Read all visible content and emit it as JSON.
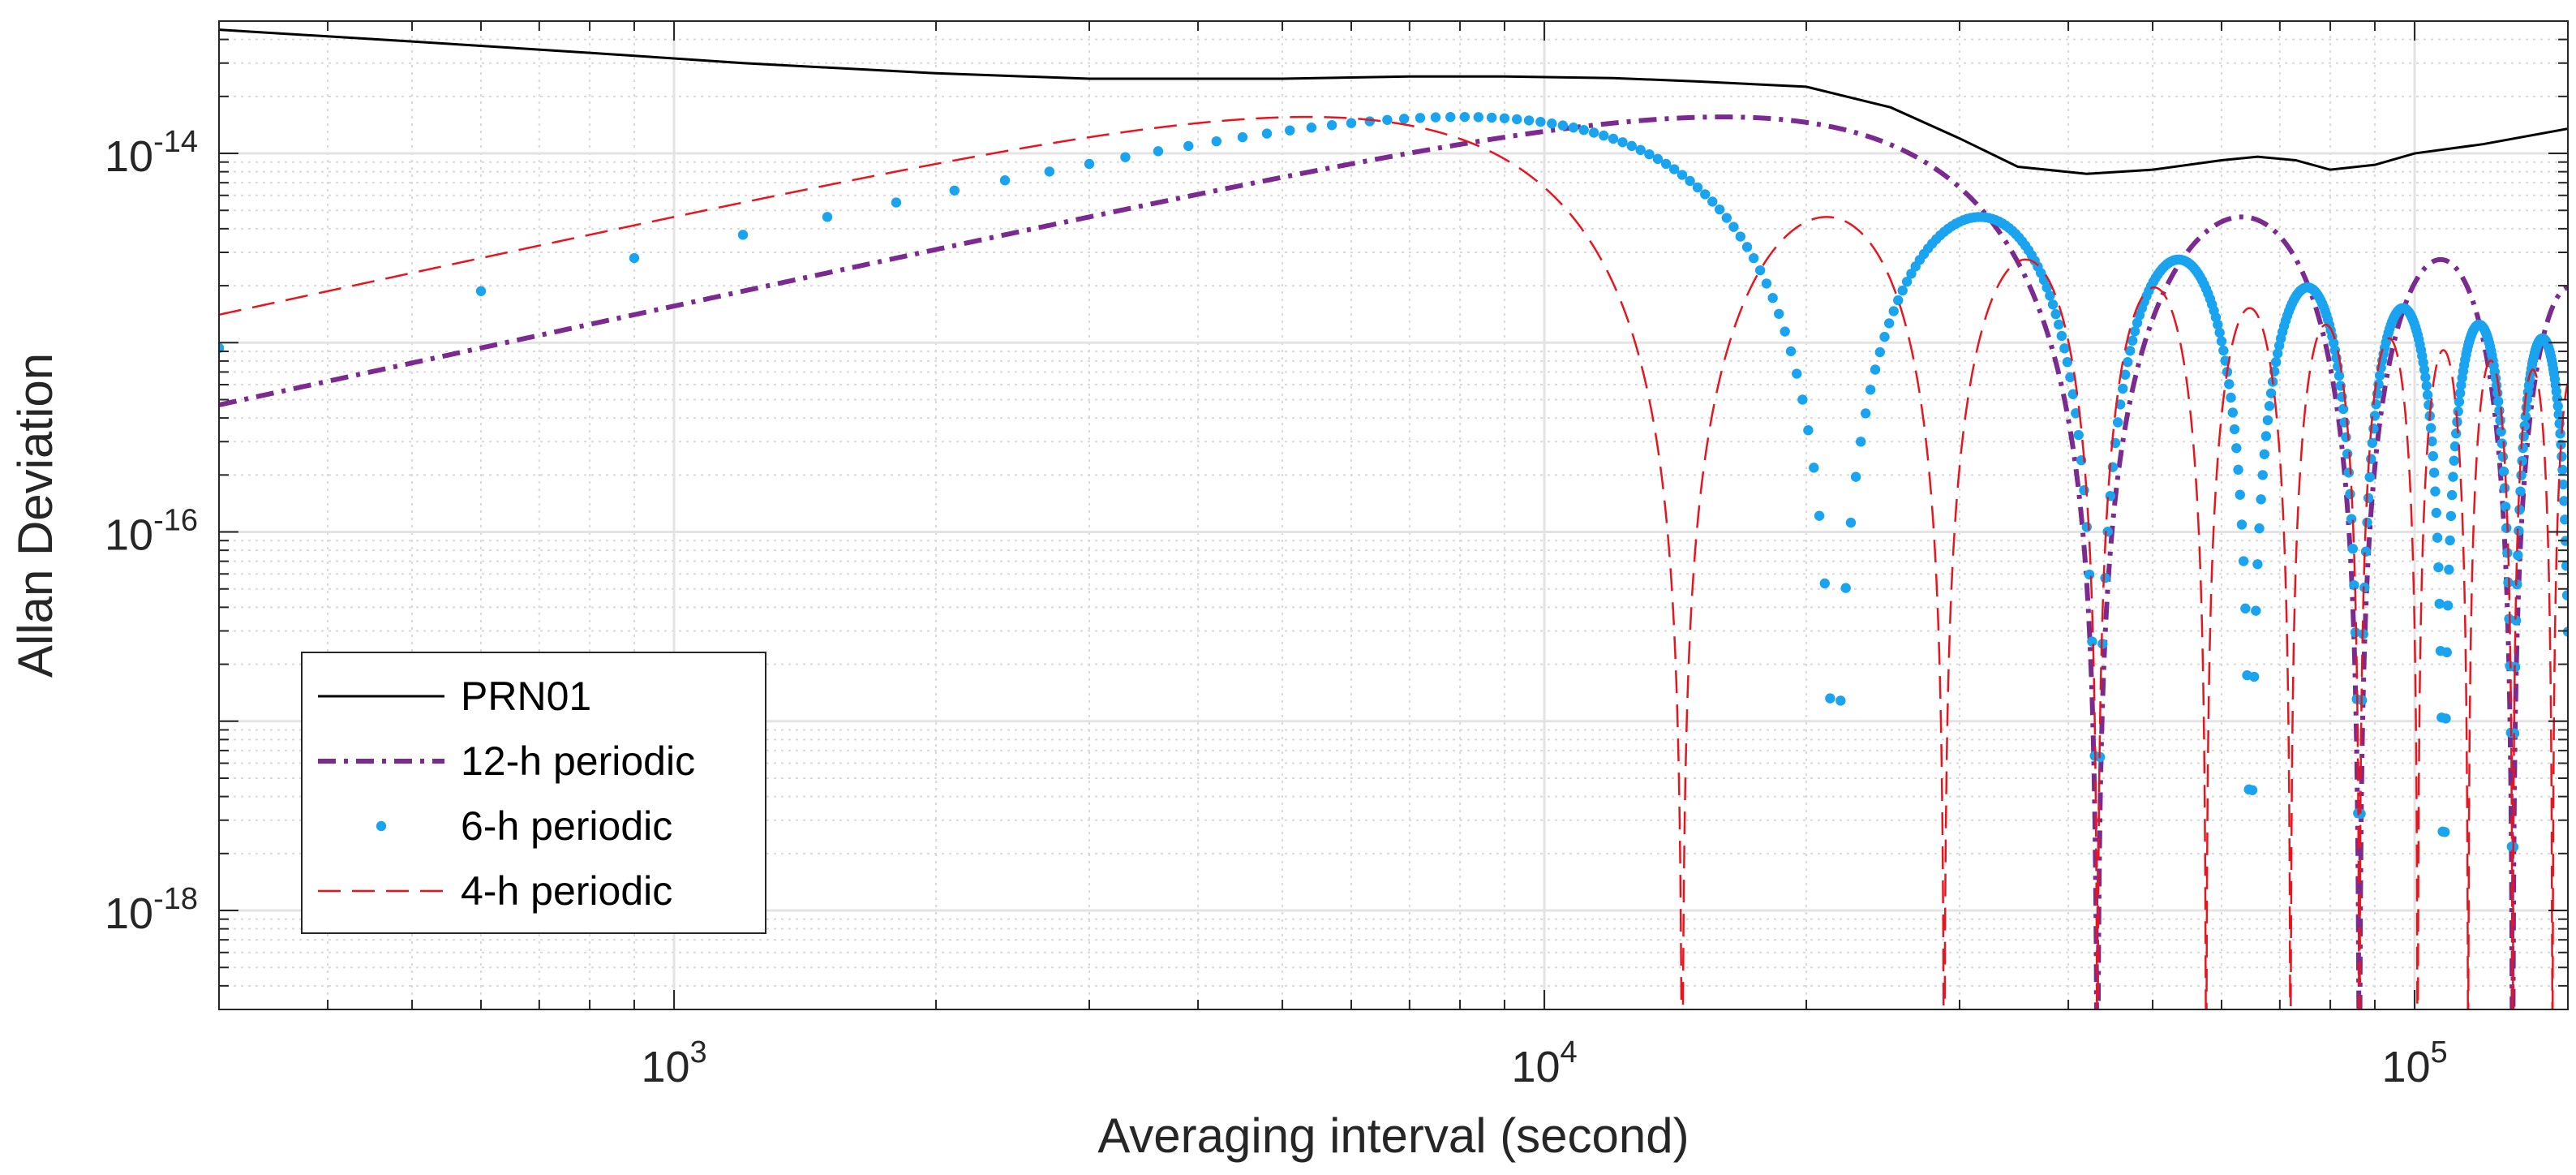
{
  "chart_data": {
    "type": "line",
    "scale": "log-log",
    "title": "",
    "xlabel": "Averaging interval (second)",
    "ylabel": "Allan Deviation",
    "xlim": [
      300,
      150000
    ],
    "ylim": [
      3e-19,
      5e-14
    ],
    "x_ticks": [
      {
        "value": 1000,
        "base": "10",
        "exp": "3"
      },
      {
        "value": 10000,
        "base": "10",
        "exp": "4"
      },
      {
        "value": 100000,
        "base": "10",
        "exp": "5"
      }
    ],
    "y_ticks": [
      {
        "value": 1e-18,
        "base": "10",
        "exp": "-18"
      },
      {
        "value": 1e-16,
        "base": "10",
        "exp": "-16"
      },
      {
        "value": 1e-14,
        "base": "10",
        "exp": "-14"
      }
    ],
    "grid": true,
    "legend_position": "lower-left",
    "series": [
      {
        "name": "PRN01",
        "style": "solid",
        "color": "#000000",
        "kind": "measured",
        "x": [
          300,
          500,
          800,
          1200,
          2000,
          3000,
          5000,
          7000,
          9000,
          12000,
          15000,
          20000,
          25000,
          30000,
          35000,
          42000,
          50000,
          60000,
          66000,
          73000,
          80000,
          90000,
          100000,
          120000,
          150000
        ],
        "y": [
          4.5e-14,
          3.9e-14,
          3.4e-14,
          3e-14,
          2.65e-14,
          2.48e-14,
          2.48e-14,
          2.55e-14,
          2.55e-14,
          2.5e-14,
          2.4e-14,
          2.25e-14,
          1.75e-14,
          1.2e-14,
          8.5e-15,
          7.8e-15,
          8.2e-15,
          9.2e-15,
          9.6e-15,
          9.2e-15,
          8.2e-15,
          8.7e-15,
          1e-14,
          1.12e-14,
          1.35e-14
        ]
      },
      {
        "name": "12-h periodic",
        "style": "dashdot",
        "color": "#7B2A8F",
        "period_hours": 12,
        "amplitude": 2.15e-14
      },
      {
        "name": "6-h periodic",
        "style": "dots",
        "color": "#1AA3EE",
        "period_hours": 6,
        "amplitude": 2.15e-14
      },
      {
        "name": "4-h periodic",
        "style": "dashed",
        "color": "#E8141E",
        "period_hours": 4,
        "amplitude": 2.15e-14
      }
    ]
  }
}
